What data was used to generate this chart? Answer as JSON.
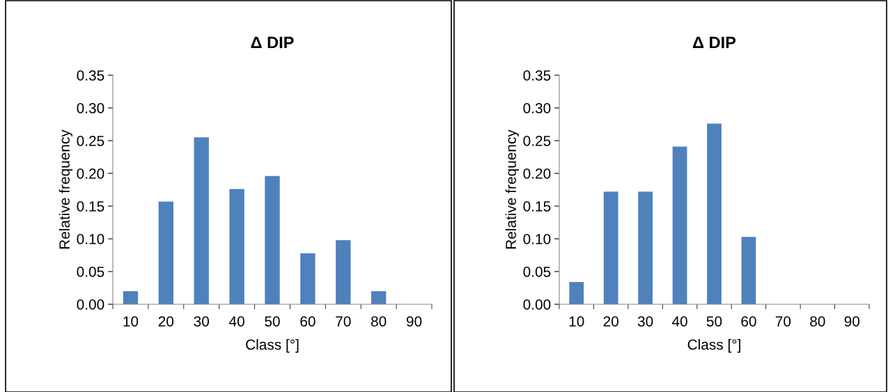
{
  "chart_data": [
    {
      "type": "bar",
      "title": "Δ DIP",
      "xlabel": "Class [°]",
      "ylabel": "Relative frequency",
      "categories": [
        "10",
        "20",
        "30",
        "40",
        "50",
        "60",
        "70",
        "80",
        "90"
      ],
      "series": [
        {
          "color": "#4f81bd",
          "values": [
            0.02,
            0.157,
            0.255,
            0.176,
            0.196,
            0.078,
            0.098,
            0.02,
            0
          ]
        }
      ],
      "ylim": [
        0,
        0.35
      ],
      "yticks": [
        {
          "value": 0,
          "label": "0.00"
        },
        {
          "value": 0.05,
          "label": "0.05"
        },
        {
          "value": 0.1,
          "label": "0.10"
        },
        {
          "value": 0.15,
          "label": "0.15"
        },
        {
          "value": 0.2,
          "label": "0.20"
        },
        {
          "value": 0.25,
          "label": "0.25"
        },
        {
          "value": 0.3,
          "label": "0.30"
        },
        {
          "value": 0.35,
          "label": "0.35"
        }
      ]
    },
    {
      "type": "bar",
      "title": "Δ DIP",
      "xlabel": "Class [°]",
      "ylabel": "Relative frequency",
      "categories": [
        "10",
        "20",
        "30",
        "40",
        "50",
        "60",
        "70",
        "80",
        "90"
      ],
      "series": [
        {
          "color": "#4f81bd",
          "values": [
            0.034,
            0.172,
            0.172,
            0.241,
            0.276,
            0.103,
            0,
            0,
            0
          ]
        }
      ],
      "ylim": [
        0,
        0.35
      ],
      "yticks": [
        {
          "value": 0,
          "label": "0.00"
        },
        {
          "value": 0.05,
          "label": "0.05"
        },
        {
          "value": 0.1,
          "label": "0.10"
        },
        {
          "value": 0.15,
          "label": "0.15"
        },
        {
          "value": 0.2,
          "label": "0.20"
        },
        {
          "value": 0.25,
          "label": "0.25"
        },
        {
          "value": 0.3,
          "label": "0.30"
        },
        {
          "value": 0.35,
          "label": "0.35"
        }
      ]
    }
  ]
}
